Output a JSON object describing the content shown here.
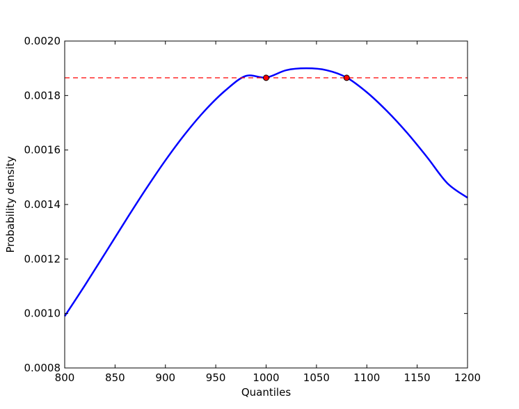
{
  "chart_data": {
    "type": "line",
    "title": "",
    "xlabel": "Quantiles",
    "ylabel": "Probability density",
    "xlim": [
      800,
      1200
    ],
    "ylim": [
      0.0008,
      0.002
    ],
    "xticks": [
      800,
      850,
      900,
      950,
      1000,
      1050,
      1100,
      1150,
      1200
    ],
    "xtick_labels": [
      "800",
      "850",
      "900",
      "950",
      "1000",
      "1050",
      "1100",
      "1150",
      "1200"
    ],
    "yticks": [
      0.0008,
      0.001,
      0.0012,
      0.0014,
      0.0016,
      0.0018,
      0.002
    ],
    "ytick_labels": [
      "0.0008",
      "0.0010",
      "0.0012",
      "0.0014",
      "0.0016",
      "0.0018",
      "0.0020"
    ],
    "grid": false,
    "series": [
      {
        "kind": "curve",
        "color": "#0000ff",
        "style": "solid",
        "x": [
          800,
          820,
          840,
          860,
          880,
          900,
          920,
          940,
          960,
          980,
          1000,
          1020,
          1040,
          1060,
          1080,
          1100,
          1120,
          1140,
          1160,
          1180,
          1200
        ],
        "y": [
          0.00099,
          0.001103,
          0.00122,
          0.001338,
          0.001453,
          0.001562,
          0.001661,
          0.001748,
          0.00182,
          0.001872,
          0.001866,
          0.001893,
          0.0019,
          0.001893,
          0.001866,
          0.001812,
          0.001743,
          0.001663,
          0.001573,
          0.001478,
          0.001425
        ]
      },
      {
        "kind": "hline",
        "color": "#ff0000",
        "style": "dashed",
        "y": 0.001865
      },
      {
        "kind": "points",
        "color": "#ff0000",
        "x": [
          1000,
          1080
        ],
        "y": [
          0.001865,
          0.001865
        ]
      }
    ]
  }
}
